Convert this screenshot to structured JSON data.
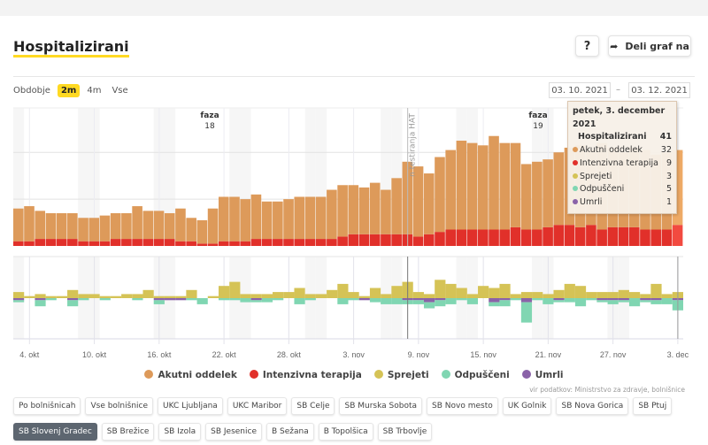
{
  "header": {
    "title": "Hospitalizirani",
    "help_label": "?",
    "share_label": "Deli graf na"
  },
  "period": {
    "label": "Obdobje",
    "options": [
      "2m",
      "4m",
      "Vse"
    ],
    "selected": "2m"
  },
  "date_range": {
    "from": "03. 10. 2021",
    "separator": "–",
    "to": "03. 12. 2021"
  },
  "colors": {
    "akutni": "#dd9a5a",
    "intenzivna": "#e1302a",
    "sprejeti": "#d5c356",
    "odpusceni": "#80d6b2",
    "umrli": "#8a62a8",
    "accent": "#ffd922"
  },
  "annotations": {
    "faza18": [
      "faza",
      "18"
    ],
    "faza19": [
      "faza",
      "19"
    ],
    "hat": "n testiranja HAT"
  },
  "tooltip": {
    "date": "petek, 3. december 2021",
    "total_label": "Hospitalizirani",
    "total": "41",
    "rows": [
      {
        "label": "Akutni oddelek",
        "value": "32",
        "color": "#dd9a5a"
      },
      {
        "label": "Intenzivna terapija",
        "value": "9",
        "color": "#e1302a"
      },
      {
        "label": "Sprejeti",
        "value": "3",
        "color": "#d5c356"
      },
      {
        "label": "Odpuščeni",
        "value": "5",
        "color": "#80d6b2"
      },
      {
        "label": "Umrli",
        "value": "1",
        "color": "#8a62a8"
      }
    ]
  },
  "chart_data": [
    {
      "type": "bar",
      "stacked": true,
      "x_start": "2021-10-03",
      "x_end": "2021-12-03",
      "xticks": [
        "4. okt",
        "10. okt",
        "16. okt",
        "22. okt",
        "28. okt",
        "3. nov",
        "9. nov",
        "15. nov",
        "21. nov",
        "27. nov",
        "3. dec"
      ],
      "ylim": [
        0,
        59
      ],
      "grid": true,
      "series": [
        {
          "name": "Akutni oddelek",
          "values": [
            14,
            15,
            12,
            11,
            11,
            11,
            10,
            10,
            11,
            11,
            11,
            14,
            12,
            12,
            11,
            14,
            10,
            10,
            15,
            19,
            19,
            18,
            19,
            16,
            16,
            17,
            18,
            18,
            18,
            21,
            22,
            21,
            20,
            22,
            19,
            24,
            31,
            30,
            26,
            32,
            34,
            38,
            37,
            36,
            40,
            37,
            36,
            28,
            29,
            29,
            31,
            33,
            35,
            32,
            37,
            34,
            32,
            34,
            34,
            32,
            33,
            32
          ]
        },
        {
          "name": "Intenzivna terapija",
          "values": [
            2,
            2,
            3,
            3,
            3,
            3,
            2,
            2,
            2,
            3,
            3,
            3,
            3,
            3,
            3,
            2,
            2,
            1,
            1,
            2,
            2,
            2,
            3,
            3,
            3,
            3,
            3,
            3,
            3,
            3,
            4,
            5,
            5,
            5,
            5,
            5,
            5,
            4,
            5,
            6,
            7,
            7,
            7,
            7,
            7,
            7,
            8,
            7,
            7,
            8,
            9,
            9,
            8,
            9,
            7,
            8,
            8,
            8,
            7,
            7,
            7,
            9
          ]
        }
      ]
    },
    {
      "type": "bar",
      "diverging": true,
      "ylim": [
        -20,
        20
      ],
      "series": [
        {
          "name": "Sprejeti",
          "values": [
            3,
            1,
            2,
            1,
            1,
            4,
            2,
            2,
            1,
            1,
            2,
            2,
            4,
            1,
            1,
            1,
            4,
            0,
            1,
            6,
            8,
            2,
            2,
            2,
            3,
            3,
            5,
            2,
            2,
            4,
            7,
            3,
            1,
            5,
            2,
            6,
            8,
            3,
            2,
            9,
            7,
            5,
            2,
            6,
            5,
            7,
            2,
            3,
            3,
            2,
            4,
            7,
            6,
            3,
            3,
            3,
            4,
            3,
            2,
            7,
            2,
            3
          ]
        },
        {
          "name": "Odpuščeni",
          "values": [
            1,
            0,
            3,
            1,
            0,
            3,
            1,
            0,
            1,
            0,
            0,
            1,
            0,
            2,
            0,
            0,
            1,
            3,
            0,
            1,
            1,
            2,
            1,
            2,
            1,
            0,
            3,
            1,
            0,
            0,
            3,
            1,
            0,
            2,
            3,
            3,
            2,
            2,
            3,
            3,
            3,
            1,
            3,
            0,
            2,
            3,
            1,
            10,
            1,
            3,
            1,
            2,
            4,
            1,
            1,
            2,
            1,
            4,
            1,
            2,
            3,
            5
          ]
        },
        {
          "name": "Umrli",
          "values": [
            1,
            0,
            1,
            0,
            0,
            1,
            0,
            0,
            0,
            0,
            0,
            0,
            0,
            1,
            1,
            1,
            0,
            0,
            0,
            0,
            0,
            0,
            1,
            0,
            0,
            0,
            0,
            0,
            0,
            0,
            0,
            0,
            1,
            0,
            0,
            0,
            1,
            1,
            2,
            1,
            0,
            0,
            0,
            0,
            2,
            1,
            0,
            2,
            0,
            0,
            1,
            0,
            0,
            0,
            1,
            1,
            1,
            0,
            1,
            1,
            0,
            1
          ]
        }
      ]
    }
  ],
  "legend": [
    {
      "label": "Akutni oddelek",
      "color": "#dd9a5a"
    },
    {
      "label": "Intenzivna terapija",
      "color": "#e1302a"
    },
    {
      "label": "Sprejeti",
      "color": "#d5c356"
    },
    {
      "label": "Odpuščeni",
      "color": "#80d6b2"
    },
    {
      "label": "Umrli",
      "color": "#8a62a8"
    }
  ],
  "source": "vir podatkov: Ministrstvo za zdravje, bolnišnice",
  "hospitals": {
    "row1": [
      "Po bolnišnicah",
      "Vse bolnišnice",
      "UKC Ljubljana",
      "UKC Maribor",
      "SB Celje",
      "SB Murska Sobota",
      "SB Novo mesto",
      "UK Golnik",
      "SB Nova Gorica",
      "SB Ptuj"
    ],
    "row2": [
      "SB Slovenj Gradec",
      "SB Brežice",
      "SB Izola",
      "SB Jesenice",
      "B Sežana",
      "B Topolšica",
      "SB Trbovlje"
    ],
    "active": "SB Slovenj Gradec"
  }
}
